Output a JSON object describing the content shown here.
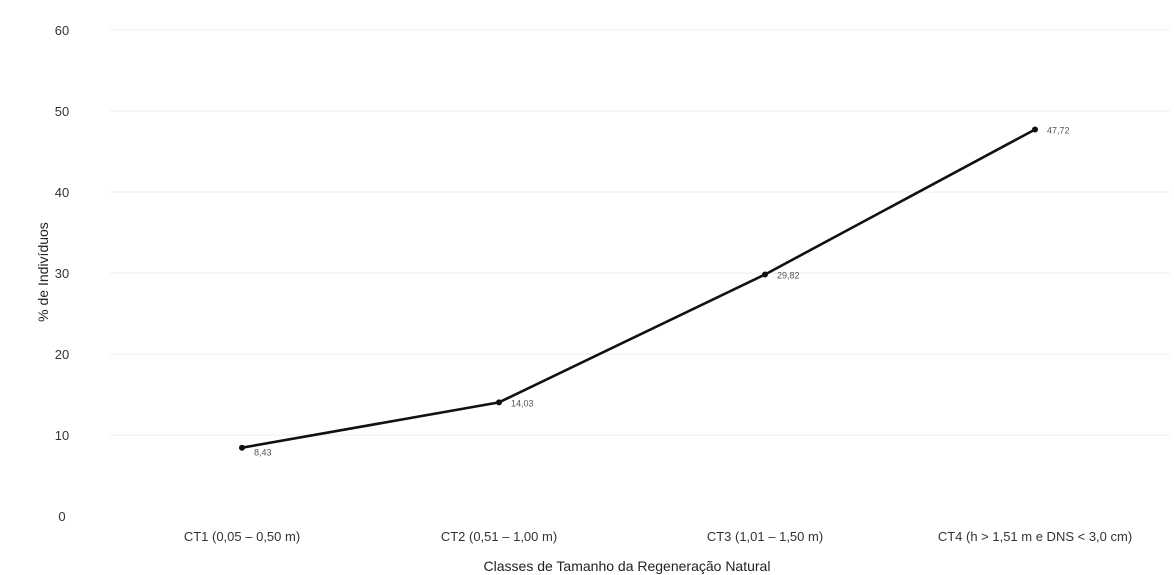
{
  "chart_data": {
    "type": "line",
    "categories": [
      "CT1 (0,05 – 0,50 m)",
      "CT2 (0,51 – 1,00 m)",
      "CT3 (1,01 – 1,50 m)",
      "CT4 (h > 1,51 m e DNS < 3,0 cm)"
    ],
    "series": [
      {
        "values": [
          8.43,
          14.03,
          29.82,
          47.72
        ]
      }
    ],
    "data_labels": [
      "8,43",
      "14,03",
      "29,82",
      "47,72"
    ],
    "yticks": [
      0,
      10,
      20,
      30,
      40,
      50,
      60
    ],
    "ytick_labels": [
      "0",
      "10",
      "20",
      "30",
      "40",
      "50",
      "60"
    ],
    "ylim": [
      0,
      60
    ],
    "xlabel": "Classes de Tamanho da Regeneração Natural",
    "ylabel": "% de Indivíduos",
    "grid": true,
    "legend": "none",
    "colors": {
      "line": "#111111",
      "grid": "#ececec",
      "text": "#333333"
    }
  }
}
